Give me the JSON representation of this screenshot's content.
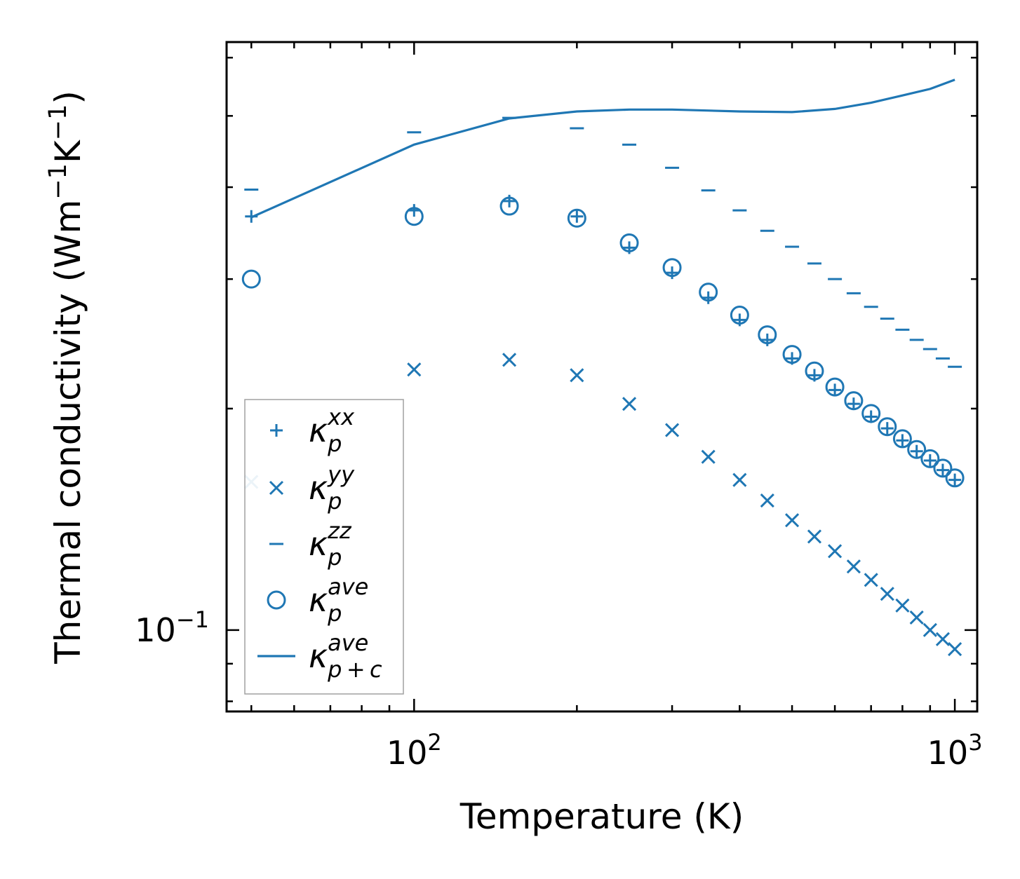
{
  "colors": {
    "series": "#1f77b4",
    "axis": "#000000",
    "legend_border": "#a0a0a0",
    "background": "#ffffff"
  },
  "chart_data": {
    "type": "scatter",
    "xscale": "log",
    "yscale": "log",
    "xlabel": "Temperature (K)",
    "ylabel": {
      "base": "Thermal conductivity (Wm",
      "exp1": "−1",
      "mid": "K",
      "exp2": "−1",
      "close": ")"
    },
    "xlim": [
      45,
      1100
    ],
    "ylim": [
      0.0775,
      0.63
    ],
    "x_ticks": [
      {
        "value": 100,
        "base": "10",
        "exp": "2"
      },
      {
        "value": 1000,
        "base": "10",
        "exp": "3"
      }
    ],
    "y_ticks": [
      {
        "value": 0.1,
        "base": "10",
        "exp": "−1"
      }
    ],
    "legend_position": "lower-left",
    "series": [
      {
        "key": "xx",
        "marker": "plus",
        "label": {
          "symbol": "κ",
          "sub": "p",
          "sup": "xx"
        },
        "points": [
          [
            50,
            0.365
          ],
          [
            100,
            0.372
          ],
          [
            150,
            0.383
          ],
          [
            200,
            0.365
          ],
          [
            250,
            0.331
          ],
          [
            300,
            0.306
          ],
          [
            350,
            0.283
          ],
          [
            400,
            0.264
          ],
          [
            450,
            0.248
          ],
          [
            500,
            0.234
          ],
          [
            550,
            0.222
          ],
          [
            600,
            0.212
          ],
          [
            650,
            0.203
          ],
          [
            700,
            0.195
          ],
          [
            750,
            0.188
          ],
          [
            800,
            0.181
          ],
          [
            850,
            0.175
          ],
          [
            900,
            0.17
          ],
          [
            950,
            0.165
          ],
          [
            1000,
            0.16
          ]
        ]
      },
      {
        "key": "yy",
        "marker": "x",
        "label": {
          "symbol": "κ",
          "sub": "p",
          "sup": "yy"
        },
        "points": [
          [
            50,
            0.159
          ],
          [
            100,
            0.226
          ],
          [
            150,
            0.233
          ],
          [
            200,
            0.222
          ],
          [
            250,
            0.203
          ],
          [
            300,
            0.187
          ],
          [
            350,
            0.172
          ],
          [
            400,
            0.16
          ],
          [
            450,
            0.15
          ],
          [
            500,
            0.141
          ],
          [
            550,
            0.134
          ],
          [
            600,
            0.128
          ],
          [
            650,
            0.122
          ],
          [
            700,
            0.117
          ],
          [
            750,
            0.112
          ],
          [
            800,
            0.108
          ],
          [
            850,
            0.104
          ],
          [
            900,
            0.1
          ],
          [
            950,
            0.0972
          ],
          [
            1000,
            0.0942
          ]
        ]
      },
      {
        "key": "zz",
        "marker": "dash",
        "label": {
          "symbol": "κ",
          "sub": "p",
          "sup": "zz"
        },
        "points": [
          [
            50,
            0.397
          ],
          [
            100,
            0.475
          ],
          [
            150,
            0.497
          ],
          [
            200,
            0.481
          ],
          [
            250,
            0.457
          ],
          [
            300,
            0.425
          ],
          [
            350,
            0.396
          ],
          [
            400,
            0.372
          ],
          [
            450,
            0.349
          ],
          [
            500,
            0.332
          ],
          [
            550,
            0.315
          ],
          [
            600,
            0.3
          ],
          [
            650,
            0.287
          ],
          [
            700,
            0.275
          ],
          [
            750,
            0.265
          ],
          [
            800,
            0.256
          ],
          [
            850,
            0.248
          ],
          [
            900,
            0.241
          ],
          [
            950,
            0.234
          ],
          [
            1000,
            0.228
          ]
        ]
      },
      {
        "key": "ave",
        "marker": "circle",
        "label": {
          "symbol": "κ",
          "sub": "p",
          "sup": "ave"
        },
        "points": [
          [
            50,
            0.3
          ],
          [
            100,
            0.365
          ],
          [
            150,
            0.377
          ],
          [
            200,
            0.363
          ],
          [
            250,
            0.336
          ],
          [
            300,
            0.311
          ],
          [
            350,
            0.288
          ],
          [
            400,
            0.268
          ],
          [
            450,
            0.252
          ],
          [
            500,
            0.237
          ],
          [
            550,
            0.225
          ],
          [
            600,
            0.214
          ],
          [
            650,
            0.205
          ],
          [
            700,
            0.197
          ],
          [
            750,
            0.189
          ],
          [
            800,
            0.182
          ],
          [
            850,
            0.176
          ],
          [
            900,
            0.171
          ],
          [
            950,
            0.166
          ],
          [
            1000,
            0.161
          ]
        ]
      },
      {
        "key": "ave_pc",
        "marker": "line",
        "label": {
          "symbol": "κ",
          "sub": "p + c",
          "sup": "ave"
        },
        "points": [
          [
            50,
            0.364
          ],
          [
            100,
            0.457
          ],
          [
            150,
            0.496
          ],
          [
            200,
            0.507
          ],
          [
            250,
            0.51
          ],
          [
            300,
            0.51
          ],
          [
            400,
            0.507
          ],
          [
            500,
            0.506
          ],
          [
            600,
            0.511
          ],
          [
            700,
            0.521
          ],
          [
            800,
            0.533
          ],
          [
            900,
            0.544
          ],
          [
            1000,
            0.56
          ]
        ]
      }
    ]
  }
}
